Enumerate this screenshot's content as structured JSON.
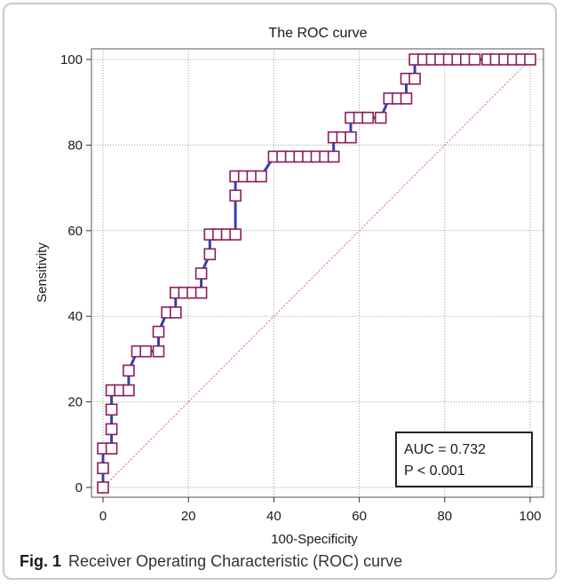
{
  "caption": {
    "label": "Fig. 1",
    "text": "Receiver Operating Characteristic (ROC) curve"
  },
  "colors": {
    "curve": "#3a3fb0",
    "marker_edge": "#8b1d5c",
    "diagonal": "#d46a6a",
    "grid": "#9a9a9a"
  },
  "chart_data": {
    "type": "line",
    "title": "The ROC curve",
    "xlabel": "100-Specificity",
    "ylabel": "Sensitivity",
    "xlim": [
      0,
      100
    ],
    "ylim": [
      0,
      100
    ],
    "x_ticks": [
      0,
      20,
      40,
      60,
      80,
      100
    ],
    "y_ticks": [
      0,
      20,
      40,
      60,
      80,
      100
    ],
    "grid": true,
    "reference_line": {
      "from": [
        0,
        0
      ],
      "to": [
        100,
        100
      ],
      "style": "dotted"
    },
    "series": [
      {
        "x": [
          0,
          0,
          0,
          2,
          2,
          2,
          2,
          4,
          6,
          6,
          8,
          10,
          13,
          13,
          15,
          17,
          17,
          19,
          21,
          23,
          23,
          25,
          25,
          27,
          29,
          31,
          31,
          31,
          33,
          35,
          37,
          40,
          42,
          44,
          46,
          48,
          50,
          52,
          54,
          54,
          56,
          58,
          58,
          60,
          62,
          65,
          67,
          69,
          71,
          71,
          73,
          73,
          75,
          77,
          79,
          81,
          83,
          85,
          87,
          90,
          92,
          94,
          96,
          98,
          100
        ],
        "y": [
          0,
          4.5,
          9.1,
          9.1,
          13.6,
          18.2,
          22.7,
          22.7,
          22.7,
          27.3,
          31.8,
          31.8,
          31.8,
          36.4,
          40.9,
          40.9,
          45.5,
          45.5,
          45.5,
          45.5,
          50,
          54.5,
          59.1,
          59.1,
          59.1,
          59.1,
          68.2,
          72.7,
          72.7,
          72.7,
          72.7,
          77.3,
          77.3,
          77.3,
          77.3,
          77.3,
          77.3,
          77.3,
          77.3,
          81.8,
          81.8,
          81.8,
          86.4,
          86.4,
          86.4,
          86.4,
          90.9,
          90.9,
          90.9,
          95.5,
          95.5,
          100,
          100,
          100,
          100,
          100,
          100,
          100,
          100,
          100,
          100,
          100,
          100,
          100,
          100
        ]
      }
    ],
    "annotation": {
      "lines": [
        "AUC = 0.732",
        "P < 0.001"
      ],
      "placement": "bottom-right"
    }
  }
}
